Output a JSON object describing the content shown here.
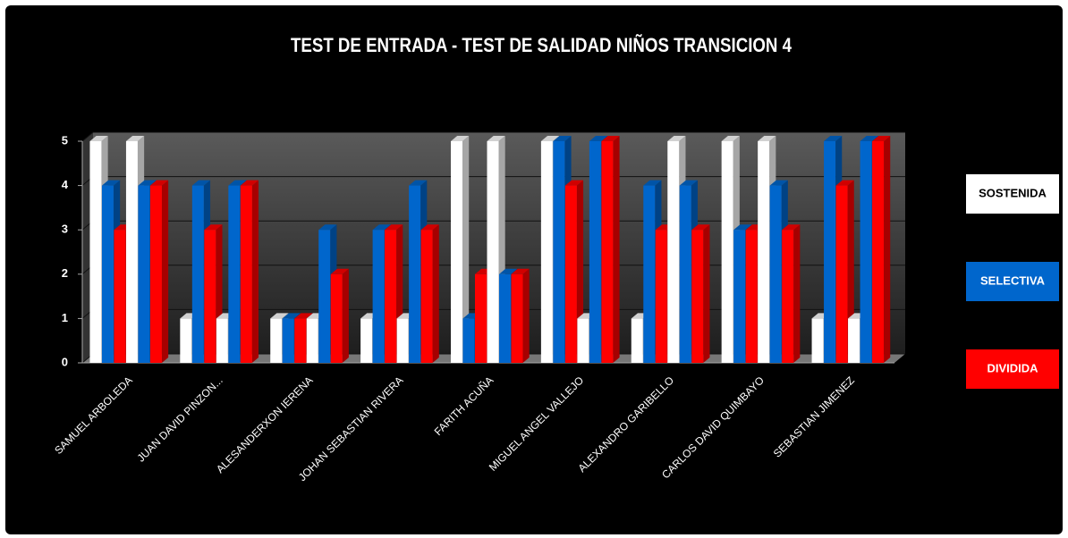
{
  "chart_data": {
    "type": "bar3d",
    "title": "TEST DE ENTRADA - TEST DE SALIDAD NIÑOS TRANSICION 4",
    "categories": [
      "SAMUEL ARBOLEDA",
      "JUAN DAVID PINZON...",
      "ALESANDERXON IERENA",
      "JOHAN SEBASTIAN RIVERA",
      "FARITH ACUÑA",
      "MIGUEL ANGEL VALLEJO",
      "ALEXANDRO GARIBELLO",
      "CARLOS DAVID QUIMBAYO",
      "SEBASTIAN JIMENEZ"
    ],
    "series": [
      {
        "name": "SOSTENIDA",
        "color": "#ffffff",
        "values": [
          [
            5,
            5
          ],
          [
            1,
            1
          ],
          [
            1,
            1
          ],
          [
            1,
            1
          ],
          [
            5,
            5
          ],
          [
            5,
            1
          ],
          [
            1,
            5
          ],
          [
            5,
            5
          ],
          [
            1,
            1
          ]
        ]
      },
      {
        "name": "SELECTIVA",
        "color": "#0066cc",
        "values": [
          [
            4,
            4
          ],
          [
            4,
            4
          ],
          [
            1,
            3
          ],
          [
            3,
            4
          ],
          [
            1,
            2
          ],
          [
            5,
            5
          ],
          [
            4,
            4
          ],
          [
            3,
            4
          ],
          [
            5,
            5
          ]
        ]
      },
      {
        "name": "DIVIDIDA",
        "color": "#ff0000",
        "values": [
          [
            3,
            4
          ],
          [
            3,
            4
          ],
          [
            1,
            2
          ],
          [
            3,
            3
          ],
          [
            2,
            2
          ],
          [
            4,
            5
          ],
          [
            3,
            3
          ],
          [
            3,
            3
          ],
          [
            4,
            5
          ]
        ]
      }
    ],
    "ylim": [
      0,
      5
    ],
    "yticks": [
      0,
      1,
      2,
      3,
      4,
      5
    ],
    "grid": true,
    "legend": "right"
  }
}
